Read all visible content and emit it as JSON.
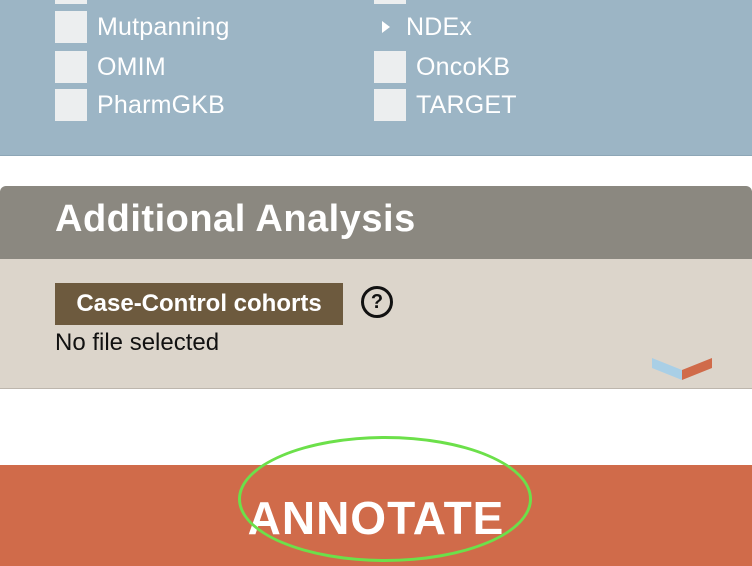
{
  "databases": {
    "left_column": [
      {
        "label": "Mutpanning",
        "checked": false
      },
      {
        "label": "OMIM",
        "checked": false
      },
      {
        "label": "PharmGKB",
        "checked": false
      }
    ],
    "right_column": {
      "expander_label": "NDEx",
      "items": [
        {
          "label": "OncoKB",
          "checked": false
        },
        {
          "label": "TARGET",
          "checked": false
        }
      ]
    }
  },
  "additional_analysis": {
    "title": "Additional Analysis",
    "file_button_label": "Case-Control cohorts",
    "help_icon_glyph": "?",
    "file_status": "No file selected"
  },
  "annotate": {
    "label": "ANNOTATE"
  },
  "colors": {
    "db_panel": "#9cb5c5",
    "section_header": "#8b8880",
    "section_body": "#dcd5cb",
    "file_button": "#6d5a3e",
    "annotate": "#d06b4a",
    "highlight": "#6ce04a"
  },
  "icons": {
    "expander": "triangle-right-icon",
    "help": "question-circle-icon",
    "collapse": "chevron-down-icon"
  }
}
